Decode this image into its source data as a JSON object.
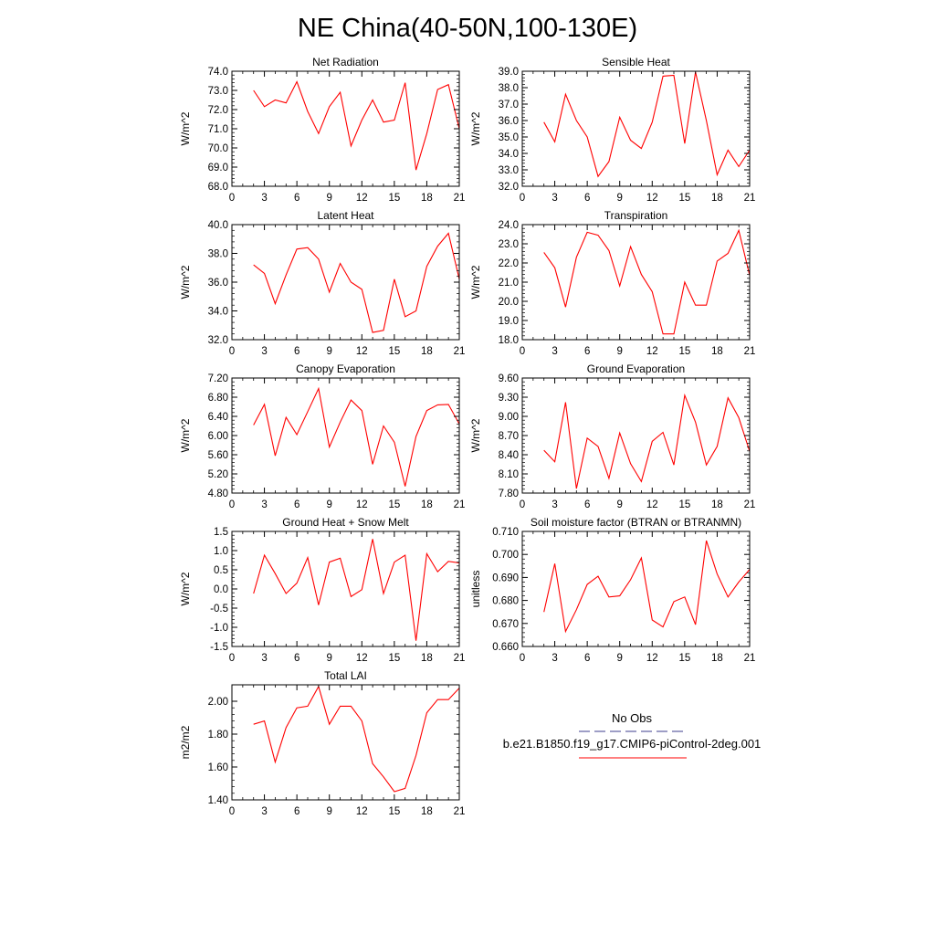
{
  "title": "NE China(40-50N,100-130E)",
  "legend": {
    "entries": [
      {
        "label": "No Obs",
        "color": "#3c3c8c",
        "style": "dashed"
      },
      {
        "label": "b.e21.B1850.f19_g17.CMIP6-piControl-2deg.001",
        "color": "#ff0000",
        "style": "solid"
      }
    ]
  },
  "chart_data": [
    {
      "type": "line",
      "title": "Net Radiation",
      "ylabel": "W/m^2",
      "xlim": [
        0,
        21
      ],
      "ylim": [
        68.0,
        74.0
      ],
      "xticks": [
        0,
        3,
        6,
        9,
        12,
        15,
        18,
        21
      ],
      "xtick_labels": [
        "0",
        "3",
        "6",
        "9",
        "12",
        "15",
        "18",
        "21"
      ],
      "yticks": [
        68.0,
        69.0,
        70.0,
        71.0,
        72.0,
        73.0,
        74.0
      ],
      "ytick_labels": [
        "68.0",
        "69.0",
        "70.0",
        "71.0",
        "72.0",
        "73.0",
        "74.0"
      ],
      "x": [
        2,
        3,
        4,
        5,
        6,
        7,
        8,
        9,
        10,
        11,
        12,
        13,
        14,
        15,
        16,
        17,
        18,
        19,
        20,
        21
      ],
      "series": [
        {
          "values": [
            73.0,
            72.15,
            72.5,
            72.35,
            73.45,
            71.9,
            70.75,
            72.15,
            72.9,
            70.1,
            71.45,
            72.5,
            71.35,
            71.45,
            73.4,
            68.85,
            70.75,
            73.05,
            73.3,
            71.0
          ],
          "color": "#ff0000"
        }
      ]
    },
    {
      "type": "line",
      "title": "Sensible Heat",
      "ylabel": "W/m^2",
      "xlim": [
        0,
        21
      ],
      "ylim": [
        32.0,
        39.0
      ],
      "xticks": [
        0,
        3,
        6,
        9,
        12,
        15,
        18,
        21
      ],
      "xtick_labels": [
        "0",
        "3",
        "6",
        "9",
        "12",
        "15",
        "18",
        "21"
      ],
      "yticks": [
        32.0,
        33.0,
        34.0,
        35.0,
        36.0,
        37.0,
        38.0,
        39.0
      ],
      "ytick_labels": [
        "32.0",
        "33.0",
        "34.0",
        "35.0",
        "36.0",
        "37.0",
        "38.0",
        "39.0"
      ],
      "x": [
        2,
        3,
        4,
        5,
        6,
        7,
        8,
        9,
        10,
        11,
        12,
        13,
        14,
        15,
        16,
        17,
        18,
        19,
        20,
        21
      ],
      "series": [
        {
          "values": [
            35.9,
            34.7,
            37.6,
            36.0,
            35.0,
            32.6,
            33.5,
            36.2,
            34.8,
            34.3,
            35.9,
            38.7,
            38.75,
            34.6,
            38.95,
            36.0,
            32.7,
            34.2,
            33.2,
            34.2
          ],
          "color": "#ff0000"
        }
      ]
    },
    {
      "type": "line",
      "title": "Latent Heat",
      "ylabel": "W/m^2",
      "xlim": [
        0,
        21
      ],
      "ylim": [
        32.0,
        40.0
      ],
      "xticks": [
        0,
        3,
        6,
        9,
        12,
        15,
        18,
        21
      ],
      "xtick_labels": [
        "0",
        "3",
        "6",
        "9",
        "12",
        "15",
        "18",
        "21"
      ],
      "yticks": [
        32.0,
        34.0,
        36.0,
        38.0,
        40.0
      ],
      "ytick_labels": [
        "32.0",
        "34.0",
        "36.0",
        "38.0",
        "40.0"
      ],
      "x": [
        2,
        3,
        4,
        5,
        6,
        7,
        8,
        9,
        10,
        11,
        12,
        13,
        14,
        15,
        16,
        17,
        18,
        19,
        20,
        21
      ],
      "series": [
        {
          "values": [
            37.2,
            36.6,
            34.5,
            36.5,
            38.3,
            38.4,
            37.6,
            35.3,
            37.3,
            36.0,
            35.5,
            32.5,
            32.65,
            36.2,
            33.6,
            34.0,
            37.1,
            38.5,
            39.4,
            36.2
          ],
          "color": "#ff0000"
        }
      ]
    },
    {
      "type": "line",
      "title": "Transpiration",
      "ylabel": "W/m^2",
      "xlim": [
        0,
        21
      ],
      "ylim": [
        18.0,
        24.0
      ],
      "xticks": [
        0,
        3,
        6,
        9,
        12,
        15,
        18,
        21
      ],
      "xtick_labels": [
        "0",
        "3",
        "6",
        "9",
        "12",
        "15",
        "18",
        "21"
      ],
      "yticks": [
        18.0,
        19.0,
        20.0,
        21.0,
        22.0,
        23.0,
        24.0
      ],
      "ytick_labels": [
        "18.0",
        "19.0",
        "20.0",
        "21.0",
        "22.0",
        "23.0",
        "24.0"
      ],
      "x": [
        2,
        3,
        4,
        5,
        6,
        7,
        8,
        9,
        10,
        11,
        12,
        13,
        14,
        15,
        16,
        17,
        18,
        19,
        20,
        21
      ],
      "series": [
        {
          "values": [
            22.55,
            21.75,
            19.7,
            22.3,
            23.6,
            23.45,
            22.65,
            20.8,
            22.85,
            21.4,
            20.5,
            18.3,
            18.3,
            21.0,
            19.8,
            19.8,
            22.1,
            22.5,
            23.7,
            21.35
          ],
          "color": "#ff0000"
        }
      ]
    },
    {
      "type": "line",
      "title": "Canopy Evaporation",
      "ylabel": "W/m^2",
      "xlim": [
        0,
        21
      ],
      "ylim": [
        4.8,
        7.2
      ],
      "xticks": [
        0,
        3,
        6,
        9,
        12,
        15,
        18,
        21
      ],
      "xtick_labels": [
        "0",
        "3",
        "6",
        "9",
        "12",
        "15",
        "18",
        "21"
      ],
      "yticks": [
        4.8,
        5.2,
        5.6,
        6.0,
        6.4,
        6.8,
        7.2
      ],
      "ytick_labels": [
        "4.80",
        "5.20",
        "5.60",
        "6.00",
        "6.40",
        "6.80",
        "7.20"
      ],
      "x": [
        2,
        3,
        4,
        5,
        6,
        7,
        8,
        9,
        10,
        11,
        12,
        13,
        14,
        15,
        16,
        17,
        18,
        19,
        20,
        21
      ],
      "series": [
        {
          "values": [
            6.22,
            6.65,
            5.58,
            6.38,
            6.02,
            6.5,
            6.98,
            5.76,
            6.28,
            6.74,
            6.52,
            5.4,
            6.2,
            5.86,
            4.94,
            5.98,
            6.52,
            6.64,
            6.65,
            6.24
          ],
          "color": "#ff0000"
        }
      ]
    },
    {
      "type": "line",
      "title": "Ground Evaporation",
      "ylabel": "W/m^2",
      "xlim": [
        0,
        21
      ],
      "ylim": [
        7.8,
        9.6
      ],
      "xticks": [
        0,
        3,
        6,
        9,
        12,
        15,
        18,
        21
      ],
      "xtick_labels": [
        "0",
        "3",
        "6",
        "9",
        "12",
        "15",
        "18",
        "21"
      ],
      "yticks": [
        7.8,
        8.1,
        8.4,
        8.7,
        9.0,
        9.3,
        9.6
      ],
      "ytick_labels": [
        "7.80",
        "8.10",
        "8.40",
        "8.70",
        "9.00",
        "9.30",
        "9.60"
      ],
      "x": [
        2,
        3,
        4,
        5,
        6,
        7,
        8,
        9,
        10,
        11,
        12,
        13,
        14,
        15,
        16,
        17,
        18,
        19,
        20,
        21
      ],
      "series": [
        {
          "values": [
            8.47,
            8.29,
            9.22,
            7.87,
            8.66,
            8.53,
            8.03,
            8.74,
            8.26,
            7.98,
            8.61,
            8.75,
            8.24,
            9.33,
            8.91,
            8.24,
            8.53,
            9.29,
            8.98,
            8.45
          ],
          "color": "#ff0000"
        }
      ]
    },
    {
      "type": "line",
      "title": "Ground Heat + Snow Melt",
      "ylabel": "W/m^2",
      "xlim": [
        0,
        21
      ],
      "ylim": [
        -1.5,
        1.5
      ],
      "xticks": [
        0,
        3,
        6,
        9,
        12,
        15,
        18,
        21
      ],
      "xtick_labels": [
        "0",
        "3",
        "6",
        "9",
        "12",
        "15",
        "18",
        "21"
      ],
      "yticks": [
        -1.5,
        -1.0,
        -0.5,
        0.0,
        0.5,
        1.0,
        1.5
      ],
      "ytick_labels": [
        "-1.5",
        "-1.0",
        "-0.5",
        "0.0",
        "0.5",
        "1.0",
        "1.5"
      ],
      "x": [
        2,
        3,
        4,
        5,
        6,
        7,
        8,
        9,
        10,
        11,
        12,
        13,
        14,
        15,
        16,
        17,
        18,
        19,
        20,
        21
      ],
      "series": [
        {
          "values": [
            -0.12,
            0.88,
            0.4,
            -0.12,
            0.15,
            0.82,
            -0.42,
            0.7,
            0.8,
            -0.2,
            -0.02,
            1.3,
            -0.12,
            0.7,
            0.88,
            -1.35,
            0.92,
            0.45,
            0.72,
            0.68
          ],
          "color": "#ff0000"
        }
      ]
    },
    {
      "type": "line",
      "title": "Soil moisture factor (BTRAN or BTRANMN)",
      "ylabel": "unitless",
      "xlim": [
        0,
        21
      ],
      "ylim": [
        0.66,
        0.71
      ],
      "xticks": [
        0,
        3,
        6,
        9,
        12,
        15,
        18,
        21
      ],
      "xtick_labels": [
        "0",
        "3",
        "6",
        "9",
        "12",
        "15",
        "18",
        "21"
      ],
      "yticks": [
        0.66,
        0.67,
        0.68,
        0.69,
        0.7,
        0.71
      ],
      "ytick_labels": [
        "0.660",
        "0.670",
        "0.680",
        "0.690",
        "0.700",
        "0.710"
      ],
      "x": [
        2,
        3,
        4,
        5,
        6,
        7,
        8,
        9,
        10,
        11,
        12,
        13,
        14,
        15,
        16,
        17,
        18,
        19,
        20,
        21
      ],
      "series": [
        {
          "values": [
            0.675,
            0.696,
            0.6665,
            0.676,
            0.687,
            0.6905,
            0.6815,
            0.682,
            0.689,
            0.6985,
            0.6715,
            0.6685,
            0.6795,
            0.6815,
            0.6695,
            0.706,
            0.6915,
            0.6815,
            0.688,
            0.6935
          ],
          "color": "#ff0000"
        }
      ]
    },
    {
      "type": "line",
      "title": "Total LAI",
      "ylabel": "m2/m2",
      "xlim": [
        0,
        21
      ],
      "ylim": [
        1.4,
        2.1
      ],
      "xticks": [
        0,
        3,
        6,
        9,
        12,
        15,
        18,
        21
      ],
      "xtick_labels": [
        "0",
        "3",
        "6",
        "9",
        "12",
        "15",
        "18",
        "21"
      ],
      "yticks": [
        1.4,
        1.6,
        1.8,
        2.0
      ],
      "ytick_labels": [
        "1.40",
        "1.60",
        "1.80",
        "2.00"
      ],
      "x": [
        2,
        3,
        4,
        5,
        6,
        7,
        8,
        9,
        10,
        11,
        12,
        13,
        14,
        15,
        16,
        17,
        18,
        19,
        20,
        21
      ],
      "series": [
        {
          "values": [
            1.86,
            1.88,
            1.63,
            1.84,
            1.96,
            1.97,
            2.09,
            1.86,
            1.97,
            1.97,
            1.88,
            1.62,
            1.54,
            1.45,
            1.47,
            1.67,
            1.93,
            2.01,
            2.01,
            2.08
          ],
          "color": "#ff0000"
        }
      ]
    }
  ]
}
